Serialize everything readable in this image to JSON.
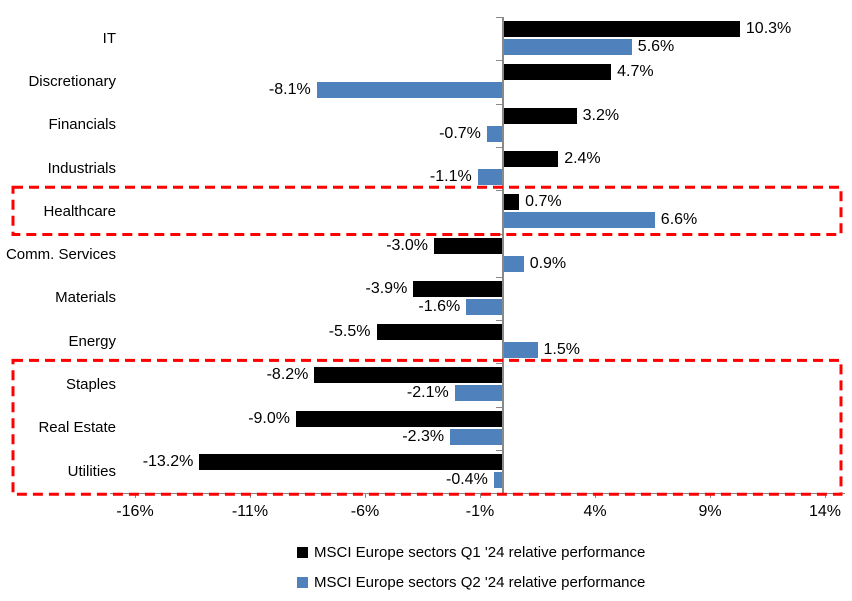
{
  "colors": {
    "q1_bar": "#000000",
    "q2_bar": "#4F81BD",
    "highlight": "#FE0000",
    "axis": "#898989",
    "text": "#000000",
    "background": "#FFFFFF"
  },
  "chart_data": {
    "type": "bar",
    "orientation": "horizontal",
    "title": "",
    "xlabel": "",
    "ylabel": "",
    "grid": false,
    "legend_position": "bottom",
    "categories": [
      "IT",
      "Discretionary",
      "Financials",
      "Industrials",
      "Healthcare",
      "Comm. Services",
      "Materials",
      "Energy",
      "Staples",
      "Real Estate",
      "Utilities"
    ],
    "series": [
      {
        "name": "MSCI Europe sectors Q1 '24 relative performance",
        "color": "#000000",
        "values": [
          10.3,
          4.7,
          3.2,
          2.4,
          0.7,
          -3.0,
          -3.9,
          -5.5,
          -8.2,
          -9.0,
          -13.2
        ],
        "labels": [
          "10.3%",
          "4.7%",
          "3.2%",
          "2.4%",
          "0.7%",
          "-3.0%",
          "-3.9%",
          "-5.5%",
          "-8.2%",
          "-9.0%",
          "-13.2%"
        ]
      },
      {
        "name": "MSCI Europe sectors Q2 '24 relative performance",
        "color": "#4F81BD",
        "values": [
          5.6,
          -8.1,
          -0.7,
          -1.1,
          6.6,
          0.9,
          -1.6,
          1.5,
          -2.1,
          -2.3,
          -0.4
        ],
        "labels": [
          "5.6%",
          "-8.1%",
          "-0.7%",
          "-1.1%",
          "6.6%",
          "0.9%",
          "-1.6%",
          "1.5%",
          "-2.1%",
          "-2.3%",
          "-0.4%"
        ]
      }
    ],
    "x_ticks": [
      "-16%",
      "-11%",
      "-6%",
      "-1%",
      "4%",
      "9%",
      "14%"
    ],
    "x_tick_values": [
      -16,
      -11,
      -6,
      -1,
      4,
      9,
      14
    ],
    "xlim": [
      -17.1,
      14.9
    ],
    "highlights": [
      {
        "from": "Healthcare",
        "to": "Healthcare"
      },
      {
        "from": "Staples",
        "to": "Utilities"
      }
    ]
  }
}
